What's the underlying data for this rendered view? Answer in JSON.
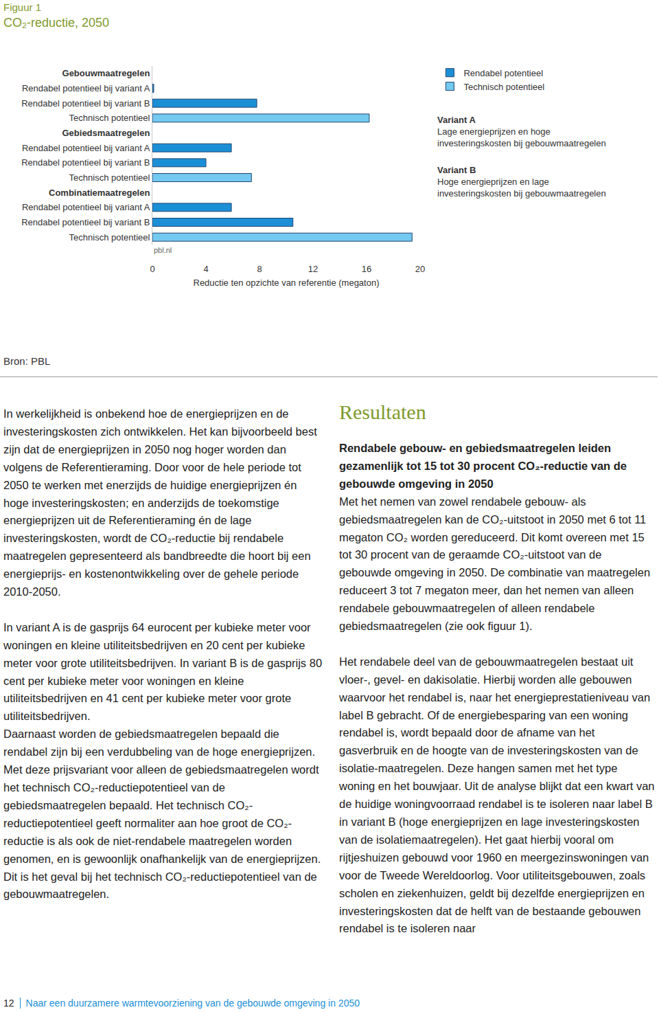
{
  "figure": {
    "label": "Figuur 1",
    "source": "Bron: PBL"
  },
  "chart_data": {
    "type": "bar",
    "orientation": "horizontal",
    "title": "CO₂-reductie, 2050",
    "categories": [
      "Gebouwmaatregelen",
      "Rendabel potentieel bij variant A",
      "Rendabel potentieel bij variant B",
      "Technisch potentieel",
      "Gebiedsmaatregelen",
      "Rendabel potentieel bij variant A",
      "Rendabel potentieel bij variant B",
      "Technisch potentieel",
      "Combinatiemaatregelen",
      "Rendabel potentieel bij variant A",
      "Rendabel potentieel bij variant B",
      "Technisch potentieel"
    ],
    "series": [
      {
        "name": "Rendabel potentieel",
        "color": "#1b8fd6",
        "values": [
          null,
          0.1,
          7.8,
          null,
          null,
          5.9,
          4.0,
          null,
          null,
          5.9,
          10.5,
          null
        ]
      },
      {
        "name": "Technisch potentieel",
        "color": "#74c9f0",
        "values": [
          null,
          null,
          null,
          16.2,
          null,
          null,
          null,
          7.4,
          null,
          null,
          null,
          19.4
        ]
      }
    ],
    "x_label": "Reductie ten opzichte van referentie (megaton)",
    "xlim": [
      0,
      20
    ],
    "xticks": [
      0,
      4,
      8,
      12,
      16,
      20
    ],
    "grid": false,
    "legend": "right",
    "annotations": [
      {
        "text": "pbl.nl"
      },
      {
        "title": "Variant A",
        "lines": [
          "Lage energieprijzen en hoge",
          "investeringskosten bij gebouwmaatregelen"
        ]
      },
      {
        "title": "Variant B",
        "lines": [
          "Hoge energieprijzen en lage",
          "investeringskosten bij gebouwmaatregelen"
        ]
      }
    ]
  },
  "left_column": {
    "blocks": [
      [
        "In werkelijkheid is onbekend hoe de energieprijzen en de investeringskosten zich ontwikkelen. Het kan bijvoorbeeld best zijn dat de energieprijzen in 2050 nog hoger worden dan volgens de Referentieraming. Door voor de hele periode tot 2050 te werken met enerzijds de huidige energieprijzen én hoge investeringskosten; en anderzijds de toekomstige energieprijzen uit de Referentieraming én de lage investeringskosten, wordt de CO₂-reductie bij rendabele maatregelen gepresenteerd als bandbreedte die hoort bij een energieprijs- en kostenontwikkeling over de gehele periode 2010-2050."
      ],
      [
        "In variant A is de gasprijs 64 eurocent per kubieke meter voor woningen en kleine utiliteitsbedrijven en 20 cent per kubieke meter voor grote utiliteitsbedrijven. In variant B is de gasprijs 80 cent per kubieke meter voor woningen en kleine utiliteitsbedrijven en 41 cent per kubieke meter voor grote utiliteitsbedrijven.",
        "Daarnaast worden de gebiedsmaatregelen bepaald die rendabel zijn bij een verdubbeling van de hoge energieprijzen. Met deze prijsvariant voor alleen de gebiedsmaatregelen wordt het technisch CO₂-reductiepotentieel van de gebiedsmaatregelen bepaald. Het technisch CO₂-reductiepotentieel geeft normaliter aan hoe groot de CO₂-reductie is als ook de niet-rendabele maatregelen worden genomen, en is gewoonlijk onafhankelijk van de energieprijzen. Dit is het geval bij het technisch CO₂-reductiepotentieel van de gebouwmaatregelen."
      ]
    ]
  },
  "right_column": {
    "heading": "Resultaten",
    "lead": "Rendabele gebouw- en gebiedsmaatregelen leiden gezamenlijk tot 15 tot 30 procent CO₂-reductie van de gebouwde omgeving in 2050",
    "blocks": [
      [
        "Met het nemen van zowel rendabele gebouw- als gebiedsmaatregelen kan de CO₂-uitstoot in 2050 met 6 tot 11 megaton CO₂ worden gereduceerd. Dit komt overeen met 15 tot 30 procent van de geraamde CO₂-uitstoot van de gebouwde omgeving in 2050. De combinatie van maatregelen reduceert 3 tot 7 megaton meer, dan het nemen van alleen rendabele gebouwmaatregelen of alleen rendabele gebiedsmaatregelen (zie ook figuur 1)."
      ],
      [
        "Het rendabele deel van de gebouwmaatregelen bestaat uit vloer-, gevel- en dakisolatie. Hierbij worden alle gebouwen waarvoor het rendabel is, naar het energieprestatieniveau van label B gebracht. Of de energiebesparing van een woning rendabel is, wordt bepaald door de afname van het gasverbruik en de hoogte van de investeringskosten van de isolatie-maatregelen. Deze hangen samen met het type woning en het bouwjaar. Uit de analyse blijkt dat een kwart van de huidige woningvoorraad rendabel is te isoleren naar label B in variant B (hoge energieprijzen en lage investeringskosten van de isolatiemaatregelen). Het gaat hierbij vooral om rijtjeshuizen gebouwd voor 1960 en meergezinswoningen van voor de Tweede Wereldoorlog. Voor utiliteitsgebouwen, zoals scholen en ziekenhuizen, geldt bij dezelfde energieprijzen en investeringskosten dat de helft van de bestaande gebouwen rendabel is te isoleren naar"
      ]
    ]
  },
  "footer": {
    "page": "12",
    "title": "Naar een duurzamere warmtevoorziening van de gebouwde omgeving in 2050"
  }
}
